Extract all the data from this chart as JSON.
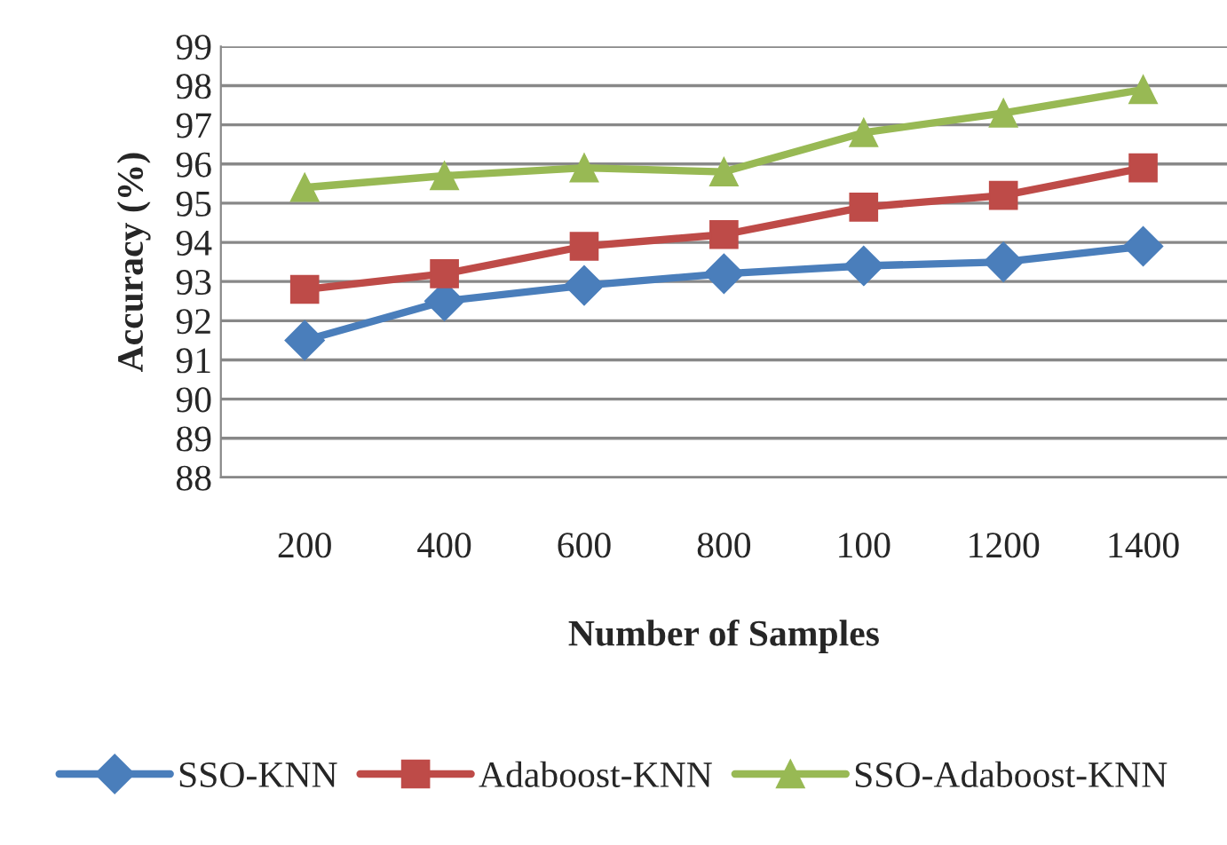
{
  "chart_data": {
    "type": "line",
    "xlabel": "Number of Samples",
    "ylabel": "Accuracy (%)",
    "categories": [
      "200",
      "400",
      "600",
      "800",
      "100",
      "1200",
      "1400"
    ],
    "series": [
      {
        "name": "SSO-KNN",
        "color": "#4a7ebb",
        "marker": "diamond",
        "values": [
          91.5,
          92.5,
          92.9,
          93.2,
          93.4,
          93.5,
          93.9
        ]
      },
      {
        "name": "Adaboost-KNN",
        "color": "#be4b48",
        "marker": "square",
        "values": [
          92.8,
          93.2,
          93.9,
          94.2,
          94.9,
          95.2,
          95.9
        ]
      },
      {
        "name": "SSO-Adaboost-KNN",
        "color": "#98b954",
        "marker": "triangle",
        "values": [
          95.4,
          95.7,
          95.9,
          95.8,
          96.8,
          97.3,
          97.9
        ]
      }
    ],
    "ylim": [
      88,
      99
    ],
    "yticks": [
      88,
      89,
      90,
      91,
      92,
      93,
      94,
      95,
      96,
      97,
      98,
      99
    ],
    "grid": "y",
    "legend": "bottom",
    "line_style": "solid"
  }
}
